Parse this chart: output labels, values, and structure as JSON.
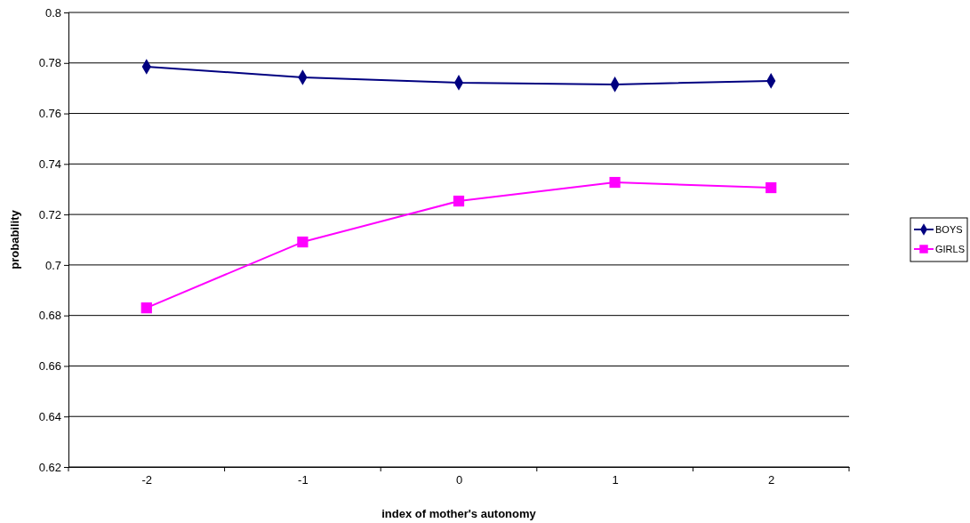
{
  "chart_data": {
    "type": "line",
    "xlabel": "index of mother's autonomy",
    "ylabel": "probability",
    "categories": [
      "-2",
      "-1",
      "0",
      "1",
      "2"
    ],
    "series": [
      {
        "name": "BOYS",
        "color": "#000080",
        "marker": "diamond",
        "values": [
          0.7785,
          0.7743,
          0.7722,
          0.7715,
          0.7729
        ]
      },
      {
        "name": "GIRLS",
        "color": "#ff00ff",
        "marker": "square",
        "values": [
          0.683,
          0.7091,
          0.7253,
          0.7327,
          0.7306
        ]
      }
    ],
    "ylim": [
      0.62,
      0.8
    ],
    "yticks": [
      0.62,
      0.64,
      0.66,
      0.68,
      0.7,
      0.72,
      0.74,
      0.76,
      0.78,
      0.8
    ],
    "grid": "y",
    "legend": "right",
    "line_style": "solid"
  }
}
